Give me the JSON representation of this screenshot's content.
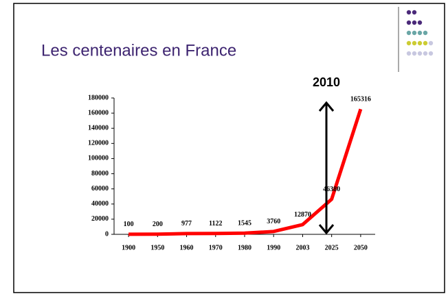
{
  "chart_data": {
    "type": "line",
    "title": "Les centenaires en France",
    "annotation": "2010",
    "categories": [
      "1900",
      "1950",
      "1960",
      "1970",
      "1980",
      "1990",
      "2003",
      "2025",
      "2050"
    ],
    "series": [
      {
        "name": "Centenaires",
        "color": "#ff0000",
        "values": [
          100,
          200,
          977,
          1122,
          1545,
          3760,
          12870,
          46380,
          165316
        ]
      }
    ],
    "ylim": [
      0,
      180000
    ],
    "yticks": [
      0,
      20000,
      40000,
      60000,
      80000,
      100000,
      120000,
      140000,
      160000,
      180000
    ],
    "grid": false
  }
}
